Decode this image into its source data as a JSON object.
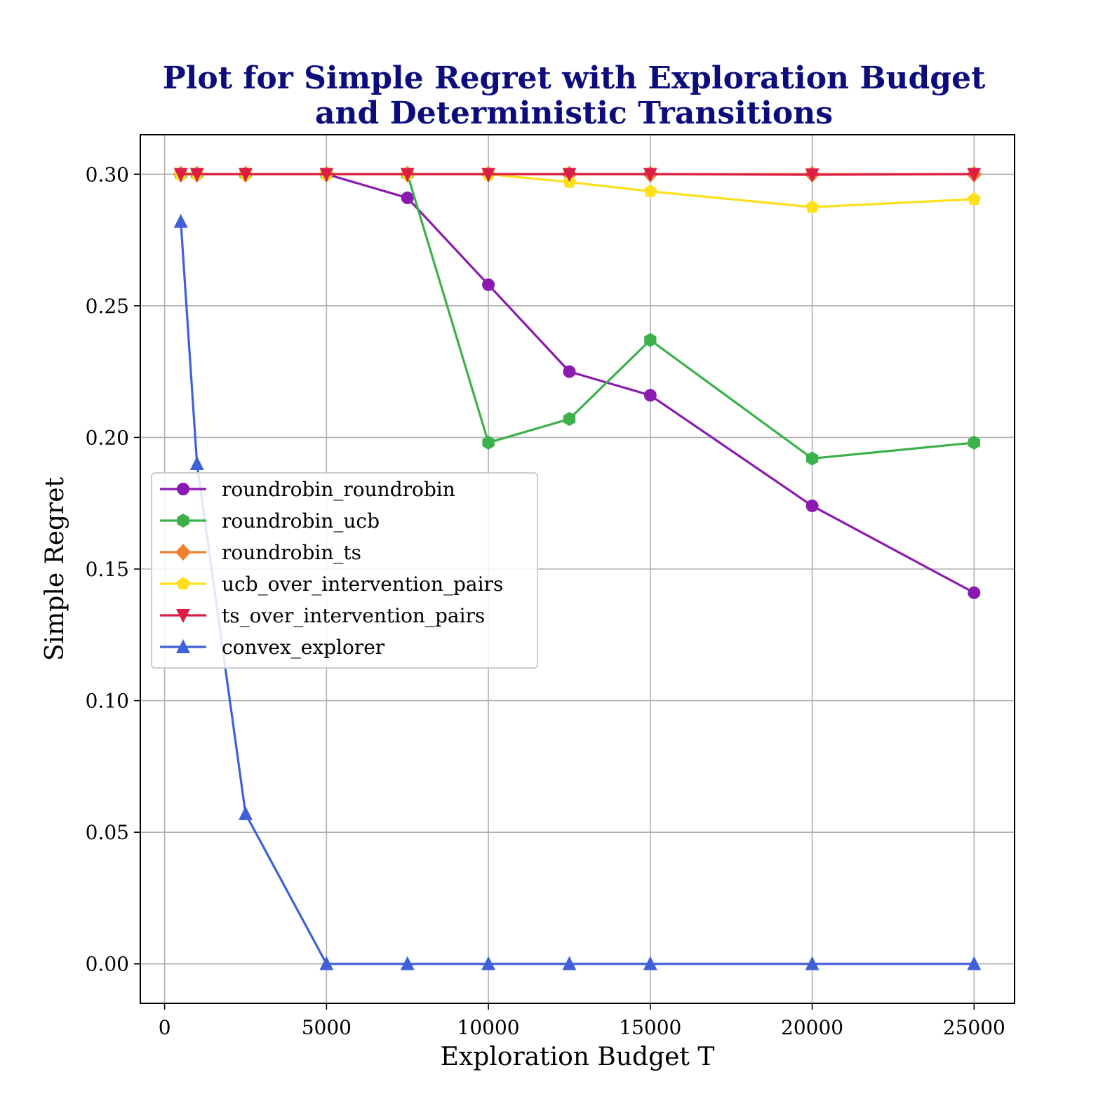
{
  "chart_data": {
    "type": "line",
    "title": [
      "Plot for Simple Regret with Exploration Budget",
      "and Deterministic Transitions"
    ],
    "xlabel": "Exploration Budget T",
    "ylabel": "Simple Regret",
    "xlim": [
      -750,
      26250
    ],
    "ylim": [
      -0.015,
      0.315
    ],
    "xticks": [
      0,
      5000,
      10000,
      15000,
      20000,
      25000
    ],
    "yticks": [
      0.0,
      0.05,
      0.1,
      0.15,
      0.2,
      0.25,
      0.3
    ],
    "ytick_labels": [
      "0.00",
      "0.05",
      "0.10",
      "0.15",
      "0.20",
      "0.25",
      "0.30"
    ],
    "grid": true,
    "legend_position": "center-left",
    "title_color": "#0c0c7d",
    "x": [
      500,
      1000,
      2500,
      5000,
      7500,
      10000,
      12500,
      15000,
      20000,
      25000
    ],
    "series": [
      {
        "name": "roundrobin_roundrobin",
        "color": "#8a1ab0",
        "marker": "circle",
        "values": [
          0.3,
          0.3,
          0.3,
          0.3,
          0.291,
          0.258,
          0.225,
          0.216,
          0.174,
          0.141
        ]
      },
      {
        "name": "roundrobin_ucb",
        "color": "#3cb04a",
        "marker": "hexagon",
        "values": [
          0.3,
          0.3,
          0.3,
          0.3,
          0.3,
          0.198,
          0.207,
          0.237,
          0.192,
          0.198
        ]
      },
      {
        "name": "roundrobin_ts",
        "color": "#f08030",
        "marker": "diamond",
        "values": [
          0.3,
          0.3,
          0.3,
          0.3,
          0.3,
          0.3,
          0.3,
          0.3,
          0.3,
          0.3
        ]
      },
      {
        "name": "ucb_over_intervention_pairs",
        "color": "#fde01a",
        "marker": "pentagon",
        "values": [
          0.3,
          0.3,
          0.3,
          0.3,
          0.3,
          0.3,
          0.297,
          0.2935,
          0.2875,
          0.2905
        ]
      },
      {
        "name": "ts_over_intervention_pairs",
        "color": "#dc1e46",
        "marker": "triangle-down",
        "values": [
          0.3,
          0.3,
          0.3,
          0.3,
          0.3,
          0.3,
          0.3,
          0.3,
          0.2998,
          0.3
        ]
      },
      {
        "name": "convex_explorer",
        "color": "#4060d8",
        "marker": "triangle-up",
        "values": [
          0.282,
          0.19,
          0.057,
          0.0,
          0.0,
          0.0,
          0.0,
          0.0,
          0.0,
          0.0
        ]
      }
    ]
  }
}
